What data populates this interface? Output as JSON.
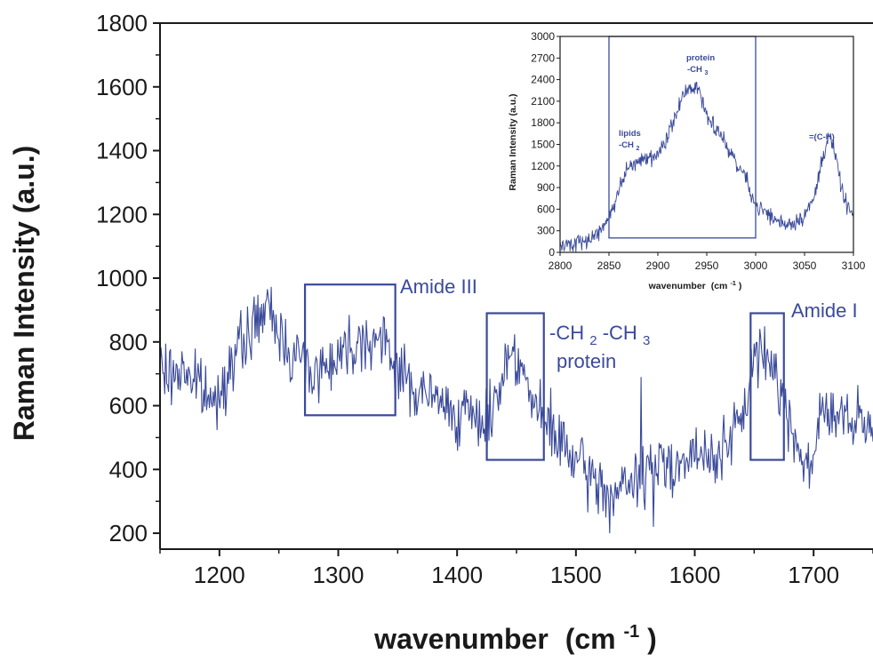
{
  "colors": {
    "series": "#3a4a9a",
    "axis": "#1a1a1a",
    "background": "#ffffff"
  },
  "chart_data": [
    {
      "type": "line",
      "xlabel": "wavenumber",
      "xlabel_unit_base": "(cm",
      "xlabel_unit_exp": "-1",
      "xlabel_unit_close": ")",
      "ylabel": "Raman Intensity (a.u.)",
      "xlim": [
        1150,
        1750
      ],
      "ylim": [
        150,
        1800
      ],
      "x_ticks": [
        1200,
        1300,
        1400,
        1500,
        1600,
        1700
      ],
      "y_ticks": [
        200,
        400,
        600,
        800,
        1000,
        1200,
        1400,
        1600,
        1800
      ],
      "grid": false,
      "anchors": [
        [
          1150,
          720
        ],
        [
          1158,
          690
        ],
        [
          1170,
          720
        ],
        [
          1185,
          650
        ],
        [
          1195,
          600
        ],
        [
          1205,
          700
        ],
        [
          1218,
          780
        ],
        [
          1230,
          860
        ],
        [
          1238,
          900
        ],
        [
          1245,
          870
        ],
        [
          1258,
          780
        ],
        [
          1270,
          740
        ],
        [
          1282,
          700
        ],
        [
          1295,
          750
        ],
        [
          1310,
          790
        ],
        [
          1322,
          820
        ],
        [
          1335,
          800
        ],
        [
          1348,
          740
        ],
        [
          1360,
          660
        ],
        [
          1375,
          630
        ],
        [
          1390,
          600
        ],
        [
          1405,
          570
        ],
        [
          1418,
          550
        ],
        [
          1428,
          560
        ],
        [
          1438,
          700
        ],
        [
          1445,
          780
        ],
        [
          1452,
          760
        ],
        [
          1460,
          640
        ],
        [
          1470,
          560
        ],
        [
          1480,
          520
        ],
        [
          1490,
          470
        ],
        [
          1500,
          420
        ],
        [
          1510,
          380
        ],
        [
          1520,
          350
        ],
        [
          1530,
          320
        ],
        [
          1540,
          340
        ],
        [
          1550,
          360
        ],
        [
          1560,
          400
        ],
        [
          1570,
          420
        ],
        [
          1580,
          430
        ],
        [
          1590,
          420
        ],
        [
          1600,
          440
        ],
        [
          1610,
          430
        ],
        [
          1620,
          460
        ],
        [
          1630,
          480
        ],
        [
          1640,
          560
        ],
        [
          1650,
          750
        ],
        [
          1658,
          760
        ],
        [
          1668,
          720
        ],
        [
          1678,
          560
        ],
        [
          1688,
          480
        ],
        [
          1696,
          380
        ],
        [
          1702,
          520
        ],
        [
          1710,
          600
        ],
        [
          1720,
          560
        ],
        [
          1735,
          540
        ],
        [
          1750,
          520
        ]
      ],
      "spikes": [
        [
          1555,
          690
        ],
        [
          1565,
          220
        ],
        [
          1528,
          200
        ]
      ],
      "noise": 95,
      "annotations": [
        {
          "label": "Amide III",
          "box_x": [
            1272,
            1348
          ],
          "box_y": [
            570,
            980
          ]
        },
        {
          "label": "-CH",
          "sub1": "2",
          "mid": "-CH",
          "sub2": "3",
          "line2": "protein",
          "box_x": [
            1425,
            1473
          ],
          "box_y": [
            430,
            890
          ]
        },
        {
          "label": "Amide I",
          "box_x": [
            1647,
            1675
          ],
          "box_y": [
            430,
            890
          ]
        }
      ]
    },
    {
      "type": "line",
      "xlabel": "wavenumber",
      "xlabel_unit_base": "(cm",
      "xlabel_unit_exp": "-1",
      "xlabel_unit_close": ")",
      "ylabel": "Raman Intensity (a.u.)",
      "xlim": [
        2800,
        3100
      ],
      "ylim": [
        0,
        3000
      ],
      "x_ticks": [
        2800,
        2850,
        2900,
        2950,
        3000,
        3050,
        3100
      ],
      "y_ticks": [
        0,
        300,
        600,
        900,
        1200,
        1500,
        1800,
        2100,
        2400,
        2700,
        3000
      ],
      "grid": false,
      "anchors": [
        [
          2800,
          80
        ],
        [
          2815,
          130
        ],
        [
          2830,
          200
        ],
        [
          2845,
          320
        ],
        [
          2855,
          650
        ],
        [
          2865,
          1050
        ],
        [
          2875,
          1250
        ],
        [
          2885,
          1300
        ],
        [
          2895,
          1300
        ],
        [
          2905,
          1450
        ],
        [
          2915,
          1750
        ],
        [
          2925,
          2150
        ],
        [
          2935,
          2330
        ],
        [
          2942,
          2250
        ],
        [
          2950,
          1950
        ],
        [
          2960,
          1700
        ],
        [
          2970,
          1500
        ],
        [
          2980,
          1250
        ],
        [
          2990,
          1050
        ],
        [
          3000,
          650
        ],
        [
          3010,
          560
        ],
        [
          3020,
          450
        ],
        [
          3030,
          400
        ],
        [
          3040,
          420
        ],
        [
          3050,
          520
        ],
        [
          3060,
          750
        ],
        [
          3068,
          1300
        ],
        [
          3075,
          1650
        ],
        [
          3082,
          1300
        ],
        [
          3090,
          750
        ],
        [
          3100,
          480
        ]
      ],
      "noise": 120,
      "highlight_box": {
        "x": [
          2850,
          3000
        ],
        "y": [
          200,
          3000
        ]
      },
      "annotations": [
        {
          "line1": "lipids",
          "line2": "-CH",
          "sub": "2",
          "at_x": 2872,
          "at_y": 1650
        },
        {
          "line1": "protein",
          "line2": "-CH",
          "sub": "3",
          "at_x": 2935,
          "at_y": 2720
        },
        {
          "line1": "=(C-H)",
          "at_x": 3073,
          "at_y": 1730
        }
      ]
    }
  ]
}
